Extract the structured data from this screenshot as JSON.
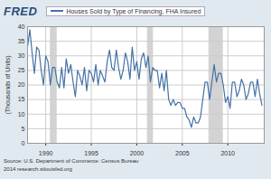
{
  "chart_data": {
    "type": "line",
    "logo": "FRED",
    "title": "Houses Sold by Type of Financing, FHA Insured",
    "ylabel": "(Thousands of Units)",
    "source": "Source: U.S. Department of Commerce: Census Bureau",
    "note": "2014 research.stlouisfed.org",
    "x": [
      1988,
      1988.25,
      1988.5,
      1988.75,
      1989,
      1989.25,
      1989.5,
      1989.75,
      1990,
      1990.25,
      1990.5,
      1990.75,
      1991,
      1991.25,
      1991.5,
      1991.75,
      1992,
      1992.25,
      1992.5,
      1992.75,
      1993,
      1993.25,
      1993.5,
      1993.75,
      1994,
      1994.25,
      1994.5,
      1994.75,
      1995,
      1995.25,
      1995.5,
      1995.75,
      1996,
      1996.25,
      1996.5,
      1996.75,
      1997,
      1997.25,
      1997.5,
      1997.75,
      1998,
      1998.25,
      1998.5,
      1998.75,
      1999,
      1999.25,
      1999.5,
      1999.75,
      2000,
      2000.25,
      2000.5,
      2000.75,
      2001,
      2001.25,
      2001.5,
      2001.75,
      2002,
      2002.25,
      2002.5,
      2002.75,
      2003,
      2003.25,
      2003.5,
      2003.75,
      2004,
      2004.25,
      2004.5,
      2004.75,
      2005,
      2005.25,
      2005.5,
      2005.75,
      2006,
      2006.25,
      2006.5,
      2006.75,
      2007,
      2007.25,
      2007.5,
      2007.75,
      2008,
      2008.25,
      2008.5,
      2008.75,
      2009,
      2009.25,
      2009.5,
      2009.75,
      2010,
      2010.25,
      2010.5,
      2010.75,
      2011,
      2011.25,
      2011.5,
      2011.75,
      2012,
      2012.25,
      2012.5,
      2012.75,
      2013,
      2013.25,
      2013.5,
      2013.75
    ],
    "series": [
      {
        "name": "Houses Sold by Type of Financing, FHA Insured",
        "color": "#4572a7",
        "values": [
          33,
          39,
          31,
          24,
          33,
          32,
          25,
          20,
          30,
          28,
          20,
          26,
          26,
          21,
          19,
          26,
          19,
          29,
          24,
          27,
          21,
          16,
          25,
          23,
          20,
          26,
          18,
          25,
          24,
          21,
          27,
          20,
          25,
          23,
          21,
          28,
          32,
          26,
          25,
          32,
          26,
          22,
          25,
          31,
          28,
          22,
          33,
          25,
          28,
          22,
          29,
          31,
          26,
          30,
          21,
          26,
          25,
          25,
          19,
          24,
          18,
          25,
          15,
          13,
          15,
          13,
          14,
          14,
          12,
          12,
          9,
          8,
          5.5,
          9,
          7,
          7,
          9,
          15,
          21,
          21,
          15,
          21,
          27,
          21,
          24,
          24,
          20,
          14,
          16,
          12,
          21,
          21,
          16,
          18,
          22,
          20,
          15,
          17,
          21,
          21,
          16,
          22,
          17,
          13
        ]
      }
    ],
    "recessions": [
      [
        1990.5,
        1991.25
      ],
      [
        2001.17,
        2001.83
      ],
      [
        2007.92,
        2009.5
      ]
    ],
    "xlim": [
      1988,
      2014
    ],
    "xticks": [
      1990,
      1995,
      2000,
      2005,
      2010
    ],
    "ylim": [
      0,
      40
    ],
    "yticks": [
      0,
      5,
      10,
      15,
      20,
      25,
      30,
      35,
      40
    ],
    "grid": true,
    "legend": "top"
  }
}
